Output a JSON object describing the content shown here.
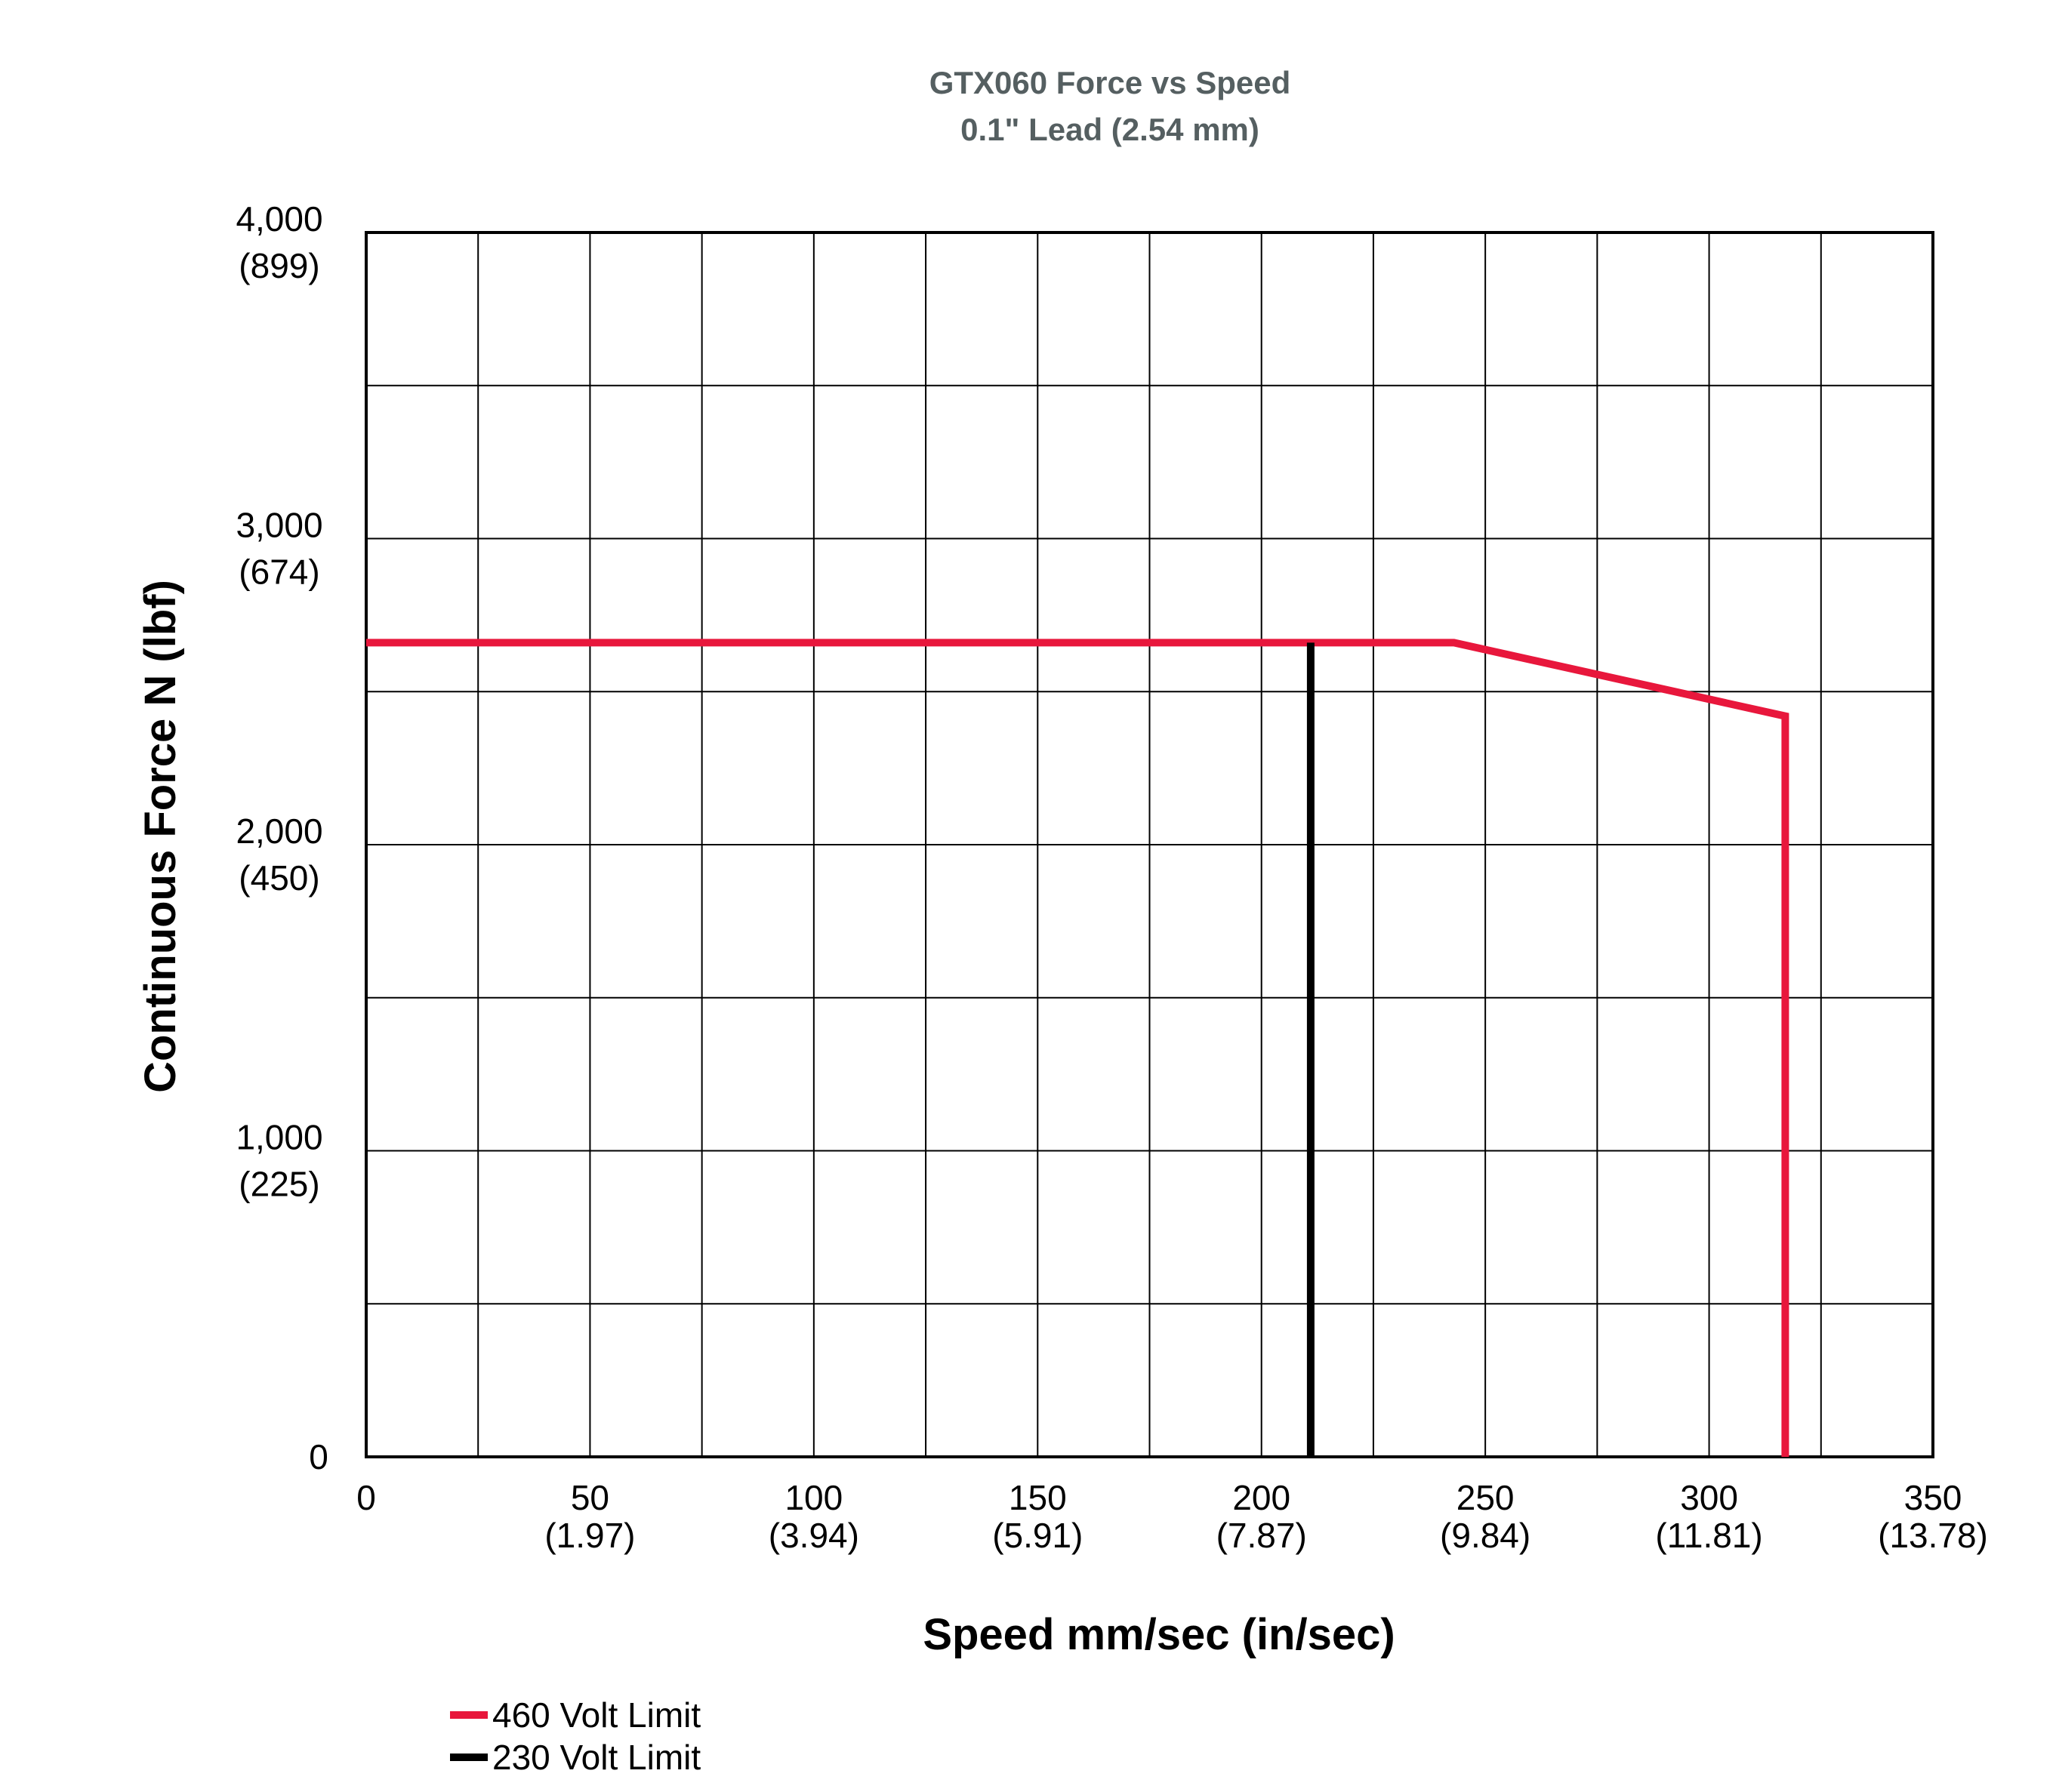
{
  "chart_data": {
    "type": "line",
    "title": "GTX060 Force vs Speed",
    "subtitle": "0.1\" Lead (2.54 mm)",
    "xlabel": "Speed mm/sec (in/sec)",
    "ylabel": "Continuous Force N (lbf)",
    "xlim": [
      0,
      350
    ],
    "ylim": [
      0,
      4000
    ],
    "x_ticks": [
      {
        "value": 0,
        "label": "0",
        "sublabel": ""
      },
      {
        "value": 50,
        "label": "50",
        "sublabel": "(1.97)"
      },
      {
        "value": 100,
        "label": "100",
        "sublabel": "(3.94)"
      },
      {
        "value": 150,
        "label": "150",
        "sublabel": "(5.91)"
      },
      {
        "value": 200,
        "label": "200",
        "sublabel": "(7.87)"
      },
      {
        "value": 250,
        "label": "250",
        "sublabel": "(9.84)"
      },
      {
        "value": 300,
        "label": "300",
        "sublabel": "(11.81)"
      },
      {
        "value": 350,
        "label": "350",
        "sublabel": "(13.78)"
      }
    ],
    "y_ticks": [
      {
        "value": 0,
        "label": "0",
        "sublabel": ""
      },
      {
        "value": 1000,
        "label": "1,000",
        "sublabel": "(225)"
      },
      {
        "value": 2000,
        "label": "2,000",
        "sublabel": "(450)"
      },
      {
        "value": 3000,
        "label": "3,000",
        "sublabel": "(674)"
      },
      {
        "value": 4000,
        "label": "4,000",
        "sublabel": "(899)"
      }
    ],
    "x_grid_step": 25,
    "y_grid_step": 500,
    "grid": true,
    "legend_position": "bottom-left",
    "series": [
      {
        "name": "460 Volt Limit",
        "color": "#e8173c",
        "points": [
          [
            0,
            2660
          ],
          [
            243,
            2660
          ],
          [
            317,
            2420
          ],
          [
            317,
            0
          ]
        ]
      },
      {
        "name": "230 Volt Limit",
        "color": "#000000",
        "points": [
          [
            211,
            2660
          ],
          [
            211,
            0
          ]
        ]
      }
    ]
  }
}
